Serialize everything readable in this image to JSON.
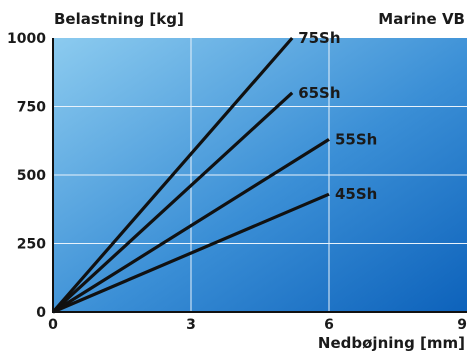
{
  "chart_data": {
    "type": "line",
    "title": "Marine VB",
    "xlabel": "Nedbøjning [mm]",
    "ylabel": "Belastning [kg]",
    "xlim": [
      0,
      9
    ],
    "ylim": [
      0,
      1000
    ],
    "xticks": [
      0,
      3,
      6,
      9
    ],
    "yticks": [
      0,
      250,
      500,
      750,
      1000
    ],
    "xtick_labels": [
      "0",
      "3",
      "6",
      "9"
    ],
    "ytick_labels": [
      "0",
      "250",
      "500",
      "750",
      "1000"
    ],
    "grid": true,
    "legend": "labels at line ends",
    "series": [
      {
        "name": "75Sh",
        "x": [
          0,
          5.2
        ],
        "y": [
          0,
          1000
        ]
      },
      {
        "name": "65Sh",
        "x": [
          0,
          5.2
        ],
        "y": [
          0,
          800
        ]
      },
      {
        "name": "55Sh",
        "x": [
          0,
          6.0
        ],
        "y": [
          0,
          630
        ]
      },
      {
        "name": "45Sh",
        "x": [
          0,
          6.0
        ],
        "y": [
          0,
          430
        ]
      }
    ]
  },
  "colors": {
    "plot_light": "#8ccbef",
    "plot_mid": "#3b8fd6",
    "plot_dark": "#0d62bb",
    "line": "#111111",
    "grid": "#e8f2fb"
  }
}
